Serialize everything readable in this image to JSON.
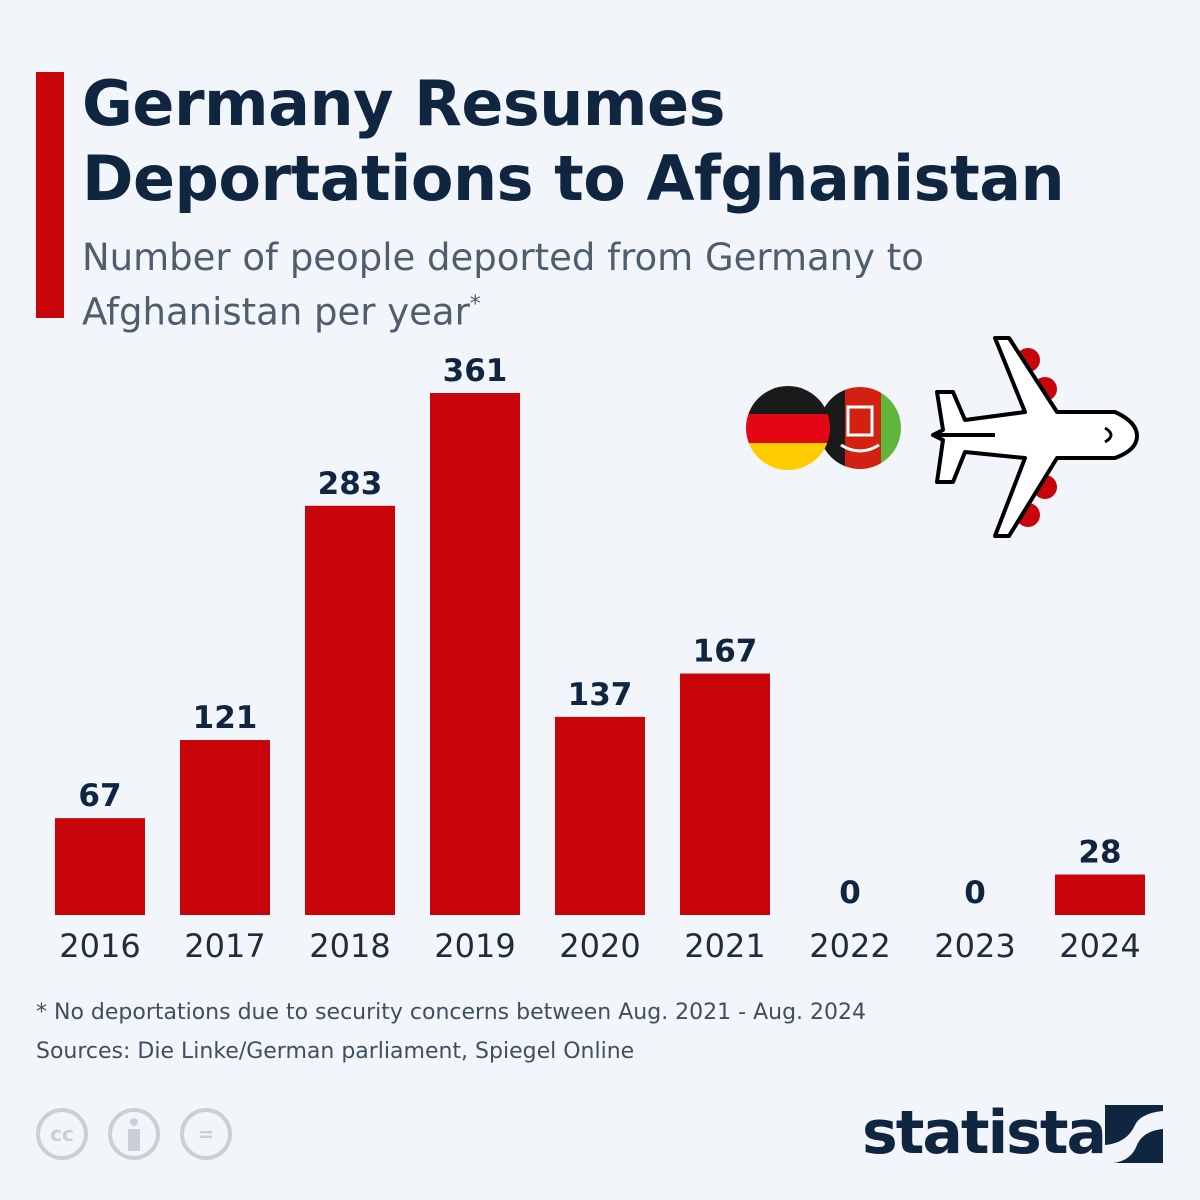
{
  "title": "Germany Resumes Deportations to Afghanistan",
  "subtitle": "Number of people deported from Germany to Afghanistan per year",
  "subtitle_marker": "*",
  "footnote": "* No deportations due to security concerns between Aug. 2021 - Aug. 2024",
  "sources": "Sources: Die Linke/German parliament, Spiegel Online",
  "brand": "statista",
  "license_icons": [
    "cc-icon",
    "attribution-icon",
    "no-derivatives-icon"
  ],
  "license_text": {
    "cc": "cc",
    "eq": "="
  },
  "icons": [
    "germany-flag-icon",
    "afghanistan-flag-icon",
    "airplane-icon"
  ],
  "colors": {
    "bar": "#c8050b",
    "title": "#0f2540",
    "accent": "#c8050b"
  },
  "chart_data": {
    "type": "bar",
    "categories": [
      "2016",
      "2017",
      "2018",
      "2019",
      "2020",
      "2021",
      "2022",
      "2023",
      "2024"
    ],
    "values": [
      67,
      121,
      283,
      361,
      137,
      167,
      0,
      0,
      28
    ],
    "data_labels": true,
    "grid": false,
    "ylim": [
      0,
      361
    ]
  }
}
